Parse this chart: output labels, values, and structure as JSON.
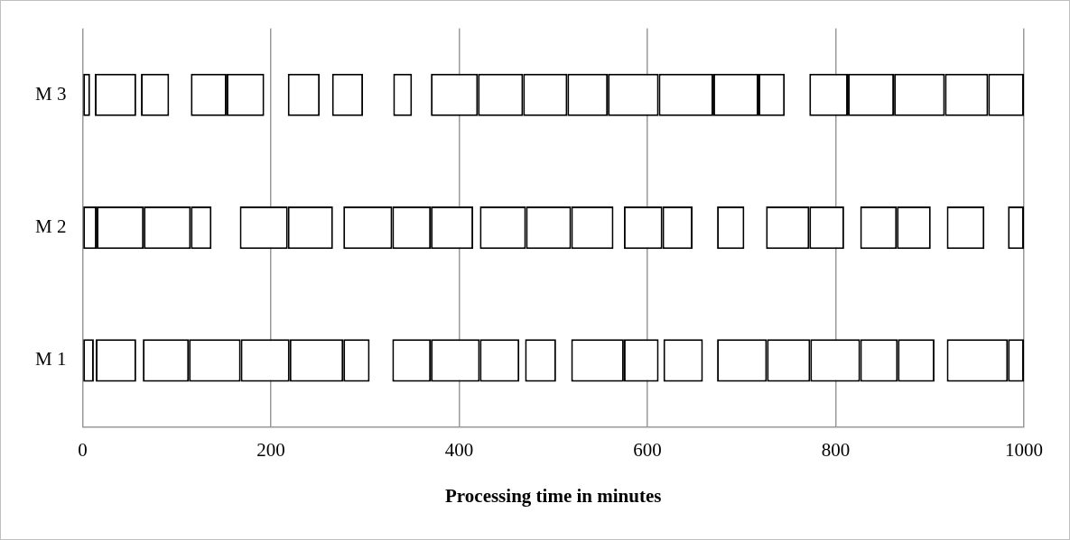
{
  "chart_data": {
    "type": "bar",
    "orientation": "horizontal",
    "xlabel": "Processing time in minutes",
    "categories": [
      "M 3",
      "M 2",
      "M 1"
    ],
    "xlim": [
      0,
      1000
    ],
    "xticks": [
      0,
      200,
      400,
      600,
      800,
      1000
    ],
    "grid": "x",
    "legend": false,
    "series": [
      {
        "color": "#ffffff",
        "base": [
          0,
          0,
          0
        ],
        "values": [
          8,
          15,
          12
        ]
      },
      {
        "color": "#ffffff",
        "base": [
          13,
          15,
          14
        ],
        "values": [
          44,
          50,
          43
        ]
      },
      {
        "color": "#ffffff",
        "base": [
          62,
          65,
          64
        ],
        "values": [
          30,
          50,
          49
        ]
      },
      {
        "color": "#ffffff",
        "base": [
          115,
          115,
          113
        ],
        "values": [
          38,
          22,
          55
        ]
      },
      {
        "color": "#ffffff",
        "base": [
          153,
          167,
          168
        ],
        "values": [
          40,
          51,
          52
        ]
      },
      {
        "color": "#ffffff",
        "base": [
          218,
          218,
          220
        ],
        "values": [
          34,
          48,
          57
        ]
      },
      {
        "color": "#ffffff",
        "base": [
          265,
          277,
          277
        ],
        "values": [
          33,
          52,
          28
        ]
      },
      {
        "color": "#ffffff",
        "base": [
          330,
          329,
          329
        ],
        "values": [
          20,
          41,
          41
        ]
      },
      {
        "color": "#ffffff",
        "base": [
          370,
          370,
          370
        ],
        "values": [
          50,
          45,
          52
        ]
      },
      {
        "color": "#ffffff",
        "base": [
          420,
          422,
          422
        ],
        "values": [
          48,
          49,
          42
        ]
      },
      {
        "color": "#ffffff",
        "base": [
          468,
          471,
          470
        ],
        "values": [
          47,
          48,
          33
        ]
      },
      {
        "color": "#ffffff",
        "base": [
          515,
          519,
          519
        ],
        "values": [
          43,
          45,
          56
        ]
      },
      {
        "color": "#ffffff",
        "base": [
          558,
          575,
          575
        ],
        "values": [
          54,
          41,
          37
        ]
      },
      {
        "color": "#ffffff",
        "base": [
          612,
          616,
          617
        ],
        "values": [
          58,
          32,
          42
        ]
      },
      {
        "color": "#ffffff",
        "base": [
          670,
          674,
          674
        ],
        "values": [
          48,
          29,
          53
        ]
      },
      {
        "color": "#ffffff",
        "base": [
          718,
          726,
          727
        ],
        "values": [
          28,
          46,
          46
        ]
      },
      {
        "color": "#ffffff",
        "base": [
          772,
          772,
          773
        ],
        "values": [
          41,
          37,
          53
        ]
      },
      {
        "color": "#ffffff",
        "base": [
          813,
          826,
          826
        ],
        "values": [
          49,
          39,
          40
        ]
      },
      {
        "color": "#ffffff",
        "base": [
          862,
          865,
          866
        ],
        "values": [
          54,
          36,
          39
        ]
      },
      {
        "color": "#ffffff",
        "base": [
          916,
          918,
          918
        ],
        "values": [
          46,
          40,
          65
        ]
      },
      {
        "color": "#ffffff",
        "base": [
          962,
          983,
          983
        ],
        "values": [
          38,
          17,
          17
        ]
      }
    ]
  }
}
